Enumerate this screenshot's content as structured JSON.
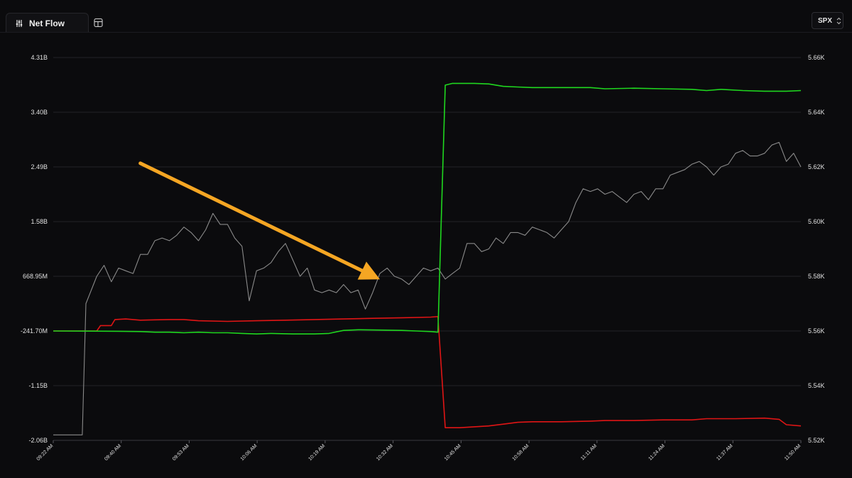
{
  "toolbar": {
    "active_tab": "Net Flow",
    "symbol": "SPX"
  },
  "colors": {
    "background": "#0b0b0d",
    "call_flow": "#1fd71f",
    "put_flow": "#e01515",
    "price": "#8a8a8a",
    "annotation_arrow": "#f5a623",
    "grid": "#232328"
  },
  "chart_data": {
    "type": "line",
    "title": "",
    "xlabel": "",
    "ylabel_left": "",
    "ylabel_right": "",
    "x_ticks": [
      "09:22 AM",
      "09:40 AM",
      "09:53 AM",
      "10:06 AM",
      "10:19 AM",
      "10:32 AM",
      "10:45 AM",
      "10:58 AM",
      "11:11 AM",
      "11:24 AM",
      "11:37 AM",
      "11:50 AM"
    ],
    "y_left_ticks": [
      "4.31B",
      "3.40B",
      "2.49B",
      "1.58B",
      "668.95M",
      "-241.70M",
      "-1.15B",
      "-2.06B"
    ],
    "y_right_ticks": [
      "5.66K",
      "5.64K",
      "5.62K",
      "5.60K",
      "5.58K",
      "5.56K",
      "5.54K",
      "5.52K"
    ],
    "y_left_range": [
      -2.06,
      4.31
    ],
    "y_right_range": [
      5520,
      5660
    ],
    "grid": true,
    "legend": "none",
    "series": [
      {
        "color": "#1fd71f",
        "axis": "left",
        "points": [
          [
            0,
            -0.24
          ],
          [
            9,
            -0.245
          ],
          [
            12,
            -0.25
          ],
          [
            14,
            -0.26
          ],
          [
            16,
            -0.26
          ],
          [
            18,
            -0.27
          ],
          [
            20,
            -0.26
          ],
          [
            22,
            -0.27
          ],
          [
            24,
            -0.27
          ],
          [
            26,
            -0.28
          ],
          [
            28,
            -0.29
          ],
          [
            30,
            -0.28
          ],
          [
            33,
            -0.29
          ],
          [
            36,
            -0.29
          ],
          [
            38,
            -0.28
          ],
          [
            40,
            -0.23
          ],
          [
            42,
            -0.22
          ],
          [
            45,
            -0.225
          ],
          [
            48,
            -0.23
          ],
          [
            50,
            -0.24
          ],
          [
            52,
            -0.25
          ],
          [
            53,
            -0.26
          ],
          [
            54,
            3.85
          ],
          [
            55,
            3.88
          ],
          [
            58,
            3.88
          ],
          [
            60,
            3.87
          ],
          [
            62,
            3.83
          ],
          [
            64,
            3.82
          ],
          [
            66,
            3.81
          ],
          [
            70,
            3.81
          ],
          [
            74,
            3.81
          ],
          [
            76,
            3.79
          ],
          [
            80,
            3.8
          ],
          [
            84,
            3.79
          ],
          [
            88,
            3.78
          ],
          [
            90,
            3.76
          ],
          [
            92,
            3.78
          ],
          [
            95,
            3.76
          ],
          [
            98,
            3.75
          ],
          [
            101,
            3.75
          ],
          [
            103,
            3.76
          ]
        ]
      },
      {
        "color": "#e01515",
        "axis": "left",
        "points": [
          [
            0,
            -0.24
          ],
          [
            6,
            -0.24
          ],
          [
            6.5,
            -0.15
          ],
          [
            8,
            -0.15
          ],
          [
            8.5,
            -0.05
          ],
          [
            10,
            -0.04
          ],
          [
            12,
            -0.06
          ],
          [
            14,
            -0.055
          ],
          [
            16,
            -0.05
          ],
          [
            18,
            -0.05
          ],
          [
            20,
            -0.07
          ],
          [
            24,
            -0.08
          ],
          [
            28,
            -0.07
          ],
          [
            32,
            -0.06
          ],
          [
            36,
            -0.05
          ],
          [
            40,
            -0.04
          ],
          [
            44,
            -0.03
          ],
          [
            48,
            -0.02
          ],
          [
            52,
            -0.01
          ],
          [
            53,
            0.0
          ],
          [
            54,
            -1.85
          ],
          [
            56,
            -1.85
          ],
          [
            60,
            -1.82
          ],
          [
            62,
            -1.79
          ],
          [
            64,
            -1.76
          ],
          [
            66,
            -1.75
          ],
          [
            70,
            -1.75
          ],
          [
            74,
            -1.74
          ],
          [
            76,
            -1.73
          ],
          [
            80,
            -1.73
          ],
          [
            84,
            -1.72
          ],
          [
            88,
            -1.72
          ],
          [
            90,
            -1.7
          ],
          [
            94,
            -1.7
          ],
          [
            98,
            -1.69
          ],
          [
            100,
            -1.71
          ],
          [
            101,
            -1.8
          ],
          [
            103,
            -1.82
          ]
        ]
      },
      {
        "color": "#8a8a8a",
        "axis": "right",
        "points": [
          [
            0,
            5522
          ],
          [
            4,
            5522
          ],
          [
            4.5,
            5570
          ],
          [
            6,
            5580
          ],
          [
            7,
            5584
          ],
          [
            8,
            5578
          ],
          [
            9,
            5583
          ],
          [
            10,
            5582
          ],
          [
            11,
            5581
          ],
          [
            12,
            5588
          ],
          [
            13,
            5588
          ],
          [
            14,
            5593
          ],
          [
            15,
            5594
          ],
          [
            16,
            5593
          ],
          [
            17,
            5595
          ],
          [
            18,
            5598
          ],
          [
            19,
            5596
          ],
          [
            20,
            5593
          ],
          [
            21,
            5597
          ],
          [
            22,
            5603
          ],
          [
            23,
            5599
          ],
          [
            24,
            5599
          ],
          [
            25,
            5594
          ],
          [
            26,
            5591
          ],
          [
            27,
            5571
          ],
          [
            28,
            5582
          ],
          [
            29,
            5583
          ],
          [
            30,
            5585
          ],
          [
            31,
            5589
          ],
          [
            32,
            5592
          ],
          [
            33,
            5586
          ],
          [
            34,
            5580
          ],
          [
            35,
            5583
          ],
          [
            36,
            5575
          ],
          [
            37,
            5574
          ],
          [
            38,
            5575
          ],
          [
            39,
            5574
          ],
          [
            40,
            5577
          ],
          [
            41,
            5574
          ],
          [
            42,
            5575
          ],
          [
            43,
            5568
          ],
          [
            44,
            5574
          ],
          [
            45,
            5581
          ],
          [
            46,
            5583
          ],
          [
            47,
            5580
          ],
          [
            48,
            5579
          ],
          [
            49,
            5577
          ],
          [
            50,
            5580
          ],
          [
            51,
            5583
          ],
          [
            52,
            5582
          ],
          [
            53,
            5583
          ],
          [
            54,
            5579
          ],
          [
            55,
            5581
          ],
          [
            56,
            5583
          ],
          [
            57,
            5592
          ],
          [
            58,
            5592
          ],
          [
            59,
            5589
          ],
          [
            60,
            5590
          ],
          [
            61,
            5594
          ],
          [
            62,
            5592
          ],
          [
            63,
            5596
          ],
          [
            64,
            5596
          ],
          [
            65,
            5595
          ],
          [
            66,
            5598
          ],
          [
            67,
            5597
          ],
          [
            68,
            5596
          ],
          [
            69,
            5594
          ],
          [
            70,
            5597
          ],
          [
            71,
            5600
          ],
          [
            72,
            5607
          ],
          [
            73,
            5612
          ],
          [
            74,
            5611
          ],
          [
            75,
            5612
          ],
          [
            76,
            5610
          ],
          [
            77,
            5611
          ],
          [
            78,
            5609
          ],
          [
            79,
            5607
          ],
          [
            80,
            5610
          ],
          [
            81,
            5611
          ],
          [
            82,
            5608
          ],
          [
            83,
            5612
          ],
          [
            84,
            5612
          ],
          [
            85,
            5617
          ],
          [
            86,
            5618
          ],
          [
            87,
            5619
          ],
          [
            88,
            5621
          ],
          [
            89,
            5622
          ],
          [
            90,
            5620
          ],
          [
            91,
            5617
          ],
          [
            92,
            5620
          ],
          [
            93,
            5621
          ],
          [
            94,
            5625
          ],
          [
            95,
            5626
          ],
          [
            96,
            5624
          ],
          [
            97,
            5624
          ],
          [
            98,
            5625
          ],
          [
            99,
            5628
          ],
          [
            100,
            5629
          ],
          [
            101,
            5622
          ],
          [
            102,
            5625
          ],
          [
            103,
            5620
          ]
        ]
      }
    ],
    "annotations": [
      {
        "type": "arrow",
        "from": [
          12,
          2.55
        ],
        "to": [
          45,
          0.62
        ],
        "color": "#f5a623"
      }
    ]
  }
}
